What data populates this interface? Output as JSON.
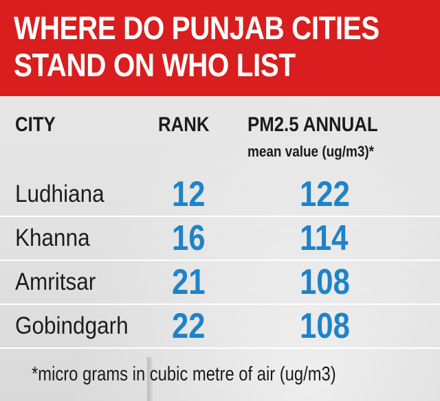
{
  "header": {
    "title_line1": "WHERE DO PUNJAB CITIES",
    "title_line2": "STAND ON WHO LIST",
    "background_color": "#d81e1e"
  },
  "table": {
    "columns": {
      "city": "CITY",
      "rank": "RANK",
      "pm": "PM2.5 ANNUAL",
      "pm_sub": "mean value (ug/m3)*"
    },
    "rows": [
      {
        "city": "Ludhiana",
        "rank": "12",
        "pm": "122"
      },
      {
        "city": "Khanna",
        "rank": "16",
        "pm": "114"
      },
      {
        "city": "Amritsar",
        "rank": "21",
        "pm": "108"
      },
      {
        "city": "Gobindgarh",
        "rank": "22",
        "pm": "108"
      }
    ],
    "value_color": "#1e83c8"
  },
  "footnote": "*micro grams in cubic metre of air (ug/m3)"
}
